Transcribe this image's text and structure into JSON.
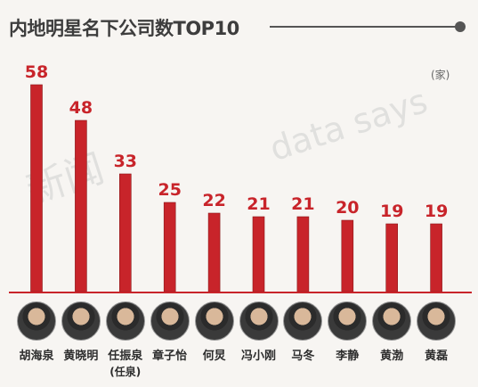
{
  "title": "内地明星名下公司数TOP10",
  "unit": "(家)",
  "watermarks": [
    "新闻",
    "data says"
  ],
  "colors": {
    "bar": "#c8242a",
    "label": "#c8242a"
  },
  "chart_data": {
    "type": "bar",
    "title": "内地明星名下公司数TOP10",
    "categories": [
      "胡海泉",
      "黄晓明",
      "任振泉",
      "章子怡",
      "何炅",
      "冯小刚",
      "马冬",
      "李静",
      "黄渤",
      "黄磊"
    ],
    "category_notes": [
      "",
      "",
      "(任泉)",
      "",
      "",
      "",
      "",
      "",
      "",
      ""
    ],
    "values": [
      58,
      48,
      33,
      25,
      22,
      21,
      21,
      20,
      19,
      19
    ],
    "ylabel": "(家)",
    "ylim": [
      0,
      58
    ],
    "grid": false,
    "legend": "none"
  }
}
